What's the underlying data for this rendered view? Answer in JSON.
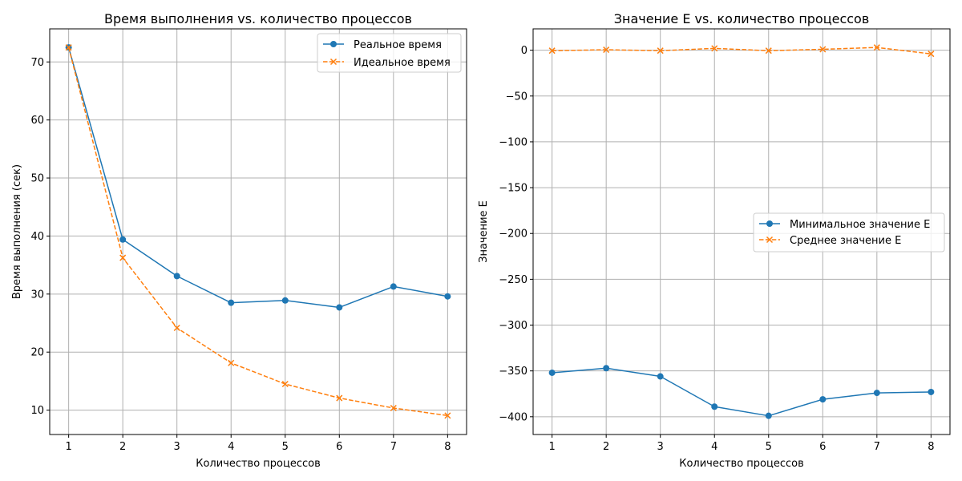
{
  "chart_data": [
    {
      "type": "line",
      "title": "Время выполнения vs. количество процессов",
      "xlabel": "Количество процессов",
      "ylabel": "Время выполнения (сек)",
      "x": [
        1,
        2,
        3,
        4,
        5,
        6,
        7,
        8
      ],
      "xlim": [
        0.65,
        8.35
      ],
      "ylim": [
        5.8,
        75.7
      ],
      "xticks": [
        1,
        2,
        3,
        4,
        5,
        6,
        7,
        8
      ],
      "yticks": [
        10,
        20,
        30,
        40,
        50,
        60,
        70
      ],
      "grid": true,
      "legend_position": "upper right",
      "series": [
        {
          "name": "Реальное время",
          "values": [
            72.5,
            39.4,
            33.1,
            28.5,
            28.9,
            27.7,
            31.3,
            29.6
          ],
          "color": "#1f77b4",
          "linestyle": "solid",
          "marker": "circle"
        },
        {
          "name": "Идеальное время",
          "values": [
            72.5,
            36.25,
            24.17,
            18.13,
            14.5,
            12.08,
            10.36,
            9.06
          ],
          "color": "#ff7f0e",
          "linestyle": "dashed",
          "marker": "x"
        }
      ]
    },
    {
      "type": "line",
      "title": "Значение E vs. количество процессов",
      "xlabel": "Количество процессов",
      "ylabel": "Значение E",
      "x": [
        1,
        2,
        3,
        4,
        5,
        6,
        7,
        8
      ],
      "xlim": [
        0.65,
        8.35
      ],
      "ylim": [
        -419.4,
        23.3
      ],
      "xticks": [
        1,
        2,
        3,
        4,
        5,
        6,
        7,
        8
      ],
      "yticks": [
        0,
        -50,
        -100,
        -150,
        -200,
        -250,
        -300,
        -350,
        -400
      ],
      "ytick_labels": [
        "0",
        "−50",
        "−100",
        "−150",
        "−200",
        "−250",
        "−300",
        "−350",
        "−400"
      ],
      "grid": true,
      "legend_position": "center right",
      "series": [
        {
          "name": "Минимальное значение E",
          "values": [
            -352,
            -347,
            -356,
            -389,
            -399,
            -381,
            -374,
            -373
          ],
          "color": "#1f77b4",
          "linestyle": "solid",
          "marker": "circle"
        },
        {
          "name": "Среднее значение E",
          "values": [
            -0.5,
            0.5,
            -0.5,
            2,
            -0.5,
            1,
            3,
            -4
          ],
          "color": "#ff7f0e",
          "linestyle": "dashed",
          "marker": "x"
        }
      ]
    }
  ]
}
